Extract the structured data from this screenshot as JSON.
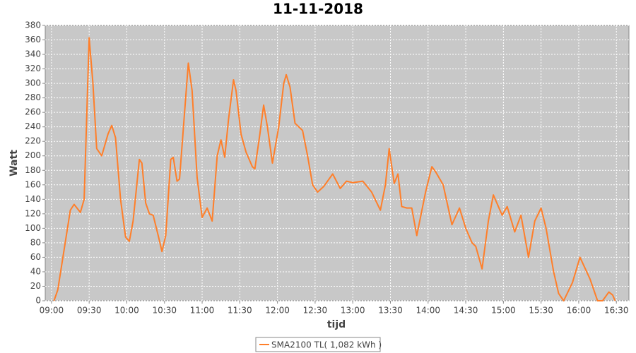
{
  "chart_data": {
    "type": "line",
    "title": "11-11-2018",
    "x_label": "tijd",
    "y_label": "Watt",
    "x": [
      "09:02",
      "09:05",
      "09:10",
      "09:15",
      "09:18",
      "09:23",
      "09:26",
      "09:30",
      "09:33",
      "09:36",
      "09:40",
      "09:45",
      "09:48",
      "09:51",
      "09:55",
      "09:59",
      "10:02",
      "10:05",
      "10:10",
      "10:12",
      "10:15",
      "10:18",
      "10:21",
      "10:25",
      "10:28",
      "10:31",
      "10:35",
      "10:37",
      "10:40",
      "10:42",
      "10:46",
      "10:49",
      "10:52",
      "10:56",
      "11:00",
      "11:04",
      "11:08",
      "11:12",
      "11:15",
      "11:18",
      "11:21",
      "11:25",
      "11:27",
      "11:31",
      "11:35",
      "11:40",
      "11:42",
      "11:46",
      "11:49",
      "11:52",
      "11:56",
      "12:01",
      "12:05",
      "12:07",
      "12:10",
      "12:14",
      "12:17",
      "12:20",
      "12:24",
      "12:28",
      "12:32",
      "12:37",
      "12:44",
      "12:50",
      "12:55",
      "13:00",
      "13:08",
      "13:15",
      "13:22",
      "13:26",
      "13:29",
      "13:33",
      "13:36",
      "13:39",
      "13:43",
      "13:47",
      "13:51",
      "13:58",
      "14:03",
      "14:06",
      "14:12",
      "14:19",
      "14:25",
      "14:30",
      "14:35",
      "14:38",
      "14:43",
      "14:48",
      "14:52",
      "14:56",
      "14:59",
      "15:03",
      "15:09",
      "15:14",
      "15:20",
      "15:25",
      "15:30",
      "15:34",
      "15:40",
      "15:44",
      "15:48",
      "15:55",
      "16:01",
      "16:05",
      "16:09",
      "16:15",
      "16:19",
      "16:24",
      "16:27",
      "16:29"
    ],
    "series": [
      {
        "name": "SMA2100 TL( 1,082 kWh )",
        "color": "#ff7f2a",
        "values": [
          0,
          15,
          70,
          125,
          133,
          122,
          140,
          363,
          300,
          210,
          200,
          230,
          242,
          225,
          140,
          88,
          82,
          110,
          195,
          190,
          135,
          120,
          118,
          90,
          68,
          90,
          195,
          198,
          165,
          168,
          260,
          328,
          290,
          170,
          115,
          128,
          110,
          200,
          222,
          198,
          250,
          305,
          290,
          230,
          205,
          185,
          182,
          230,
          270,
          240,
          190,
          240,
          300,
          312,
          295,
          245,
          240,
          235,
          200,
          160,
          150,
          158,
          175,
          155,
          165,
          163,
          165,
          150,
          125,
          160,
          210,
          162,
          175,
          130,
          128,
          128,
          90,
          150,
          185,
          178,
          160,
          105,
          128,
          100,
          80,
          75,
          44,
          110,
          146,
          130,
          118,
          130,
          95,
          118,
          60,
          110,
          128,
          100,
          40,
          10,
          0,
          25,
          60,
          45,
          30,
          0,
          0,
          12,
          8,
          0
        ]
      }
    ],
    "xlim": [
      "08:55",
      "16:40"
    ],
    "xticks": [
      "09:00",
      "09:30",
      "10:00",
      "10:30",
      "11:00",
      "11:30",
      "12:00",
      "12:30",
      "13:00",
      "13:30",
      "14:00",
      "14:30",
      "15:00",
      "15:30",
      "16:00",
      "16:30"
    ],
    "ylim": [
      0,
      380
    ],
    "yticks": [
      0,
      20,
      40,
      60,
      80,
      100,
      120,
      140,
      160,
      180,
      200,
      220,
      240,
      260,
      280,
      300,
      320,
      340,
      360,
      380
    ],
    "grid": true,
    "legend": "bottom"
  }
}
